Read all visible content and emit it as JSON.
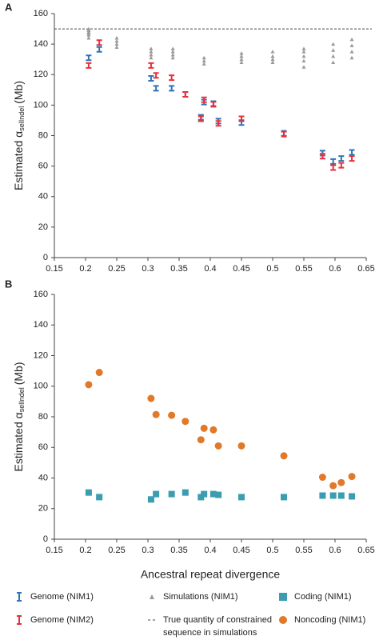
{
  "chart_data": [
    {
      "type": "scatter",
      "panel": "A",
      "ylabel": "Estimated α",
      "ylabel_sub": "selIndel",
      "ylabel_unit": "(Mb)",
      "xlim": [
        0.15,
        0.65
      ],
      "xticks": [
        0.15,
        0.2,
        0.25,
        0.3,
        0.35,
        0.4,
        0.45,
        0.5,
        0.55,
        0.6,
        0.65
      ],
      "ylim": [
        0,
        160
      ],
      "yticks": [
        0,
        20,
        40,
        60,
        80,
        100,
        120,
        140,
        160
      ],
      "hline": 150,
      "hline_label": "True quantity of constrained sequence in simulations",
      "series": [
        {
          "name": "Genome (NIM1)",
          "color": "#2e75b6",
          "marker": "errorbar",
          "x": [
            0.205,
            0.222,
            0.305,
            0.313,
            0.338,
            0.36,
            0.385,
            0.39,
            0.405,
            0.413,
            0.45,
            0.518,
            0.58,
            0.597,
            0.61,
            0.627
          ],
          "values": [
            131,
            136.5,
            117.5,
            111,
            111,
            107,
            92,
            102,
            101,
            89.5,
            88.5,
            81.5,
            68.5,
            63,
            65,
            69
          ]
        },
        {
          "name": "Genome (NIM2)",
          "color": "#e8303a",
          "marker": "errorbar",
          "x": [
            0.205,
            0.222,
            0.305,
            0.313,
            0.338,
            0.36,
            0.385,
            0.39,
            0.405,
            0.413,
            0.45,
            0.518,
            0.58,
            0.597,
            0.61,
            0.627
          ],
          "values": [
            126,
            141,
            126,
            119.5,
            118,
            107,
            91,
            103.5,
            100.5,
            88,
            91,
            81,
            66.5,
            59,
            60.5,
            65
          ]
        },
        {
          "name": "Simulations (NIM1)",
          "color": "#9a9a9a",
          "marker": "triangle",
          "x": [
            0.205,
            0.205,
            0.205,
            0.205,
            0.205,
            0.205,
            0.25,
            0.25,
            0.25,
            0.25,
            0.305,
            0.305,
            0.305,
            0.305,
            0.34,
            0.34,
            0.34,
            0.34,
            0.39,
            0.39,
            0.39,
            0.45,
            0.45,
            0.45,
            0.45,
            0.5,
            0.5,
            0.5,
            0.5,
            0.55,
            0.55,
            0.55,
            0.55,
            0.55,
            0.597,
            0.597,
            0.597,
            0.597,
            0.627,
            0.627,
            0.627,
            0.627
          ],
          "values": [
            144,
            146,
            147,
            148,
            149,
            150,
            138,
            140,
            142,
            144,
            131,
            133,
            135,
            137,
            131,
            133,
            135,
            137,
            127,
            129,
            131,
            128,
            130,
            132,
            134,
            128,
            130,
            132,
            135,
            125,
            129,
            132,
            135,
            137,
            128,
            132,
            136,
            140,
            131,
            135,
            139,
            143
          ]
        }
      ]
    },
    {
      "type": "scatter",
      "panel": "B",
      "ylabel": "Estimated α",
      "ylabel_sub": "selIndel",
      "ylabel_unit": "(Mb)",
      "xlabel": "Ancestral repeat divergence",
      "xlim": [
        0.15,
        0.65
      ],
      "xticks": [
        0.15,
        0.2,
        0.25,
        0.3,
        0.35,
        0.4,
        0.45,
        0.5,
        0.55,
        0.6,
        0.65
      ],
      "ylim": [
        0,
        160
      ],
      "yticks": [
        0,
        20,
        40,
        60,
        80,
        100,
        120,
        140,
        160
      ],
      "series": [
        {
          "name": "Coding (NIM1)",
          "color": "#3a9db0",
          "marker": "square",
          "x": [
            0.205,
            0.222,
            0.305,
            0.313,
            0.338,
            0.36,
            0.385,
            0.39,
            0.405,
            0.413,
            0.45,
            0.518,
            0.58,
            0.597,
            0.61,
            0.627
          ],
          "values": [
            30.5,
            27.5,
            26,
            29.5,
            29.5,
            30.5,
            27.5,
            29.5,
            29.5,
            29,
            27.5,
            27.5,
            28.5,
            28.5,
            28.5,
            28
          ]
        },
        {
          "name": "Noncoding (NIM1)",
          "color": "#e07a2a",
          "marker": "circle",
          "x": [
            0.205,
            0.222,
            0.305,
            0.313,
            0.338,
            0.36,
            0.385,
            0.39,
            0.405,
            0.413,
            0.45,
            0.518,
            0.58,
            0.597,
            0.61,
            0.627
          ],
          "values": [
            101,
            109,
            92,
            81.5,
            81,
            77,
            65,
            72.5,
            71.5,
            61,
            61,
            54.5,
            40.5,
            35,
            37,
            41
          ]
        }
      ]
    }
  ]
}
